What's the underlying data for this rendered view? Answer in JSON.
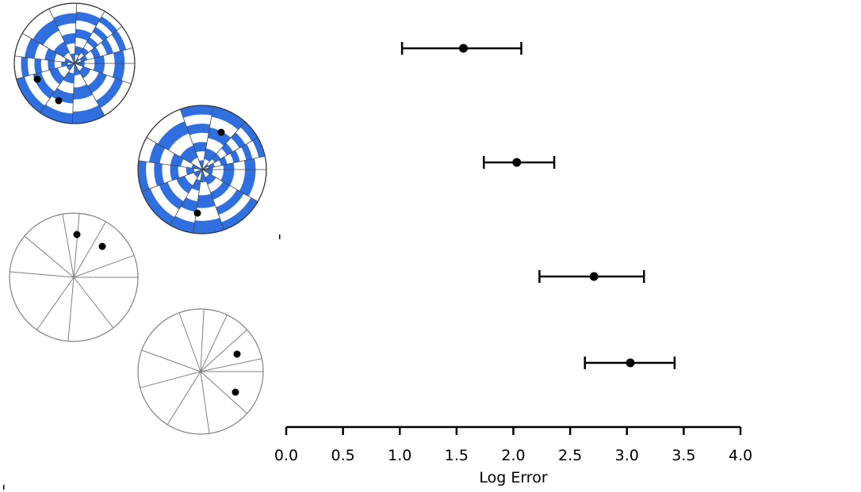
{
  "chart_data": {
    "type": "scatter",
    "xlabel": "Log Error",
    "xlim": [
      0.0,
      4.0
    ],
    "ticks": [
      "0.0",
      "0.5",
      "1.0",
      "1.5",
      "2.0",
      "2.5",
      "3.0",
      "3.5",
      "4.0"
    ],
    "rows": [
      {
        "mean": 1.56,
        "low": 1.02,
        "high": 2.07
      },
      {
        "mean": 2.03,
        "low": 1.74,
        "high": 2.36
      },
      {
        "mean": 2.71,
        "low": 2.23,
        "high": 3.15
      },
      {
        "mean": 3.03,
        "low": 2.63,
        "high": 3.42
      }
    ]
  },
  "colors": {
    "glyph_fill": "#2f6fe0",
    "ink": "#000000",
    "outline": "#808080"
  }
}
